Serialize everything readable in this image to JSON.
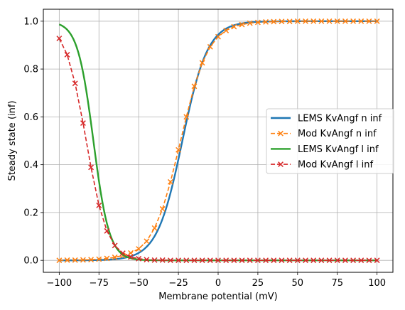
{
  "chart_data": {
    "type": "line",
    "xlabel": "Membrane potential (mV)",
    "ylabel": "Steady state (inf)",
    "xlim": [
      -110,
      110
    ],
    "ylim": [
      -0.05,
      1.05
    ],
    "xticks": [
      -100,
      -75,
      -50,
      -25,
      0,
      25,
      50,
      75,
      100
    ],
    "xtick_labels": [
      "−100",
      "−75",
      "−50",
      "−25",
      "0",
      "25",
      "50",
      "75",
      "100"
    ],
    "yticks": [
      0.0,
      0.2,
      0.4,
      0.6,
      0.8,
      1.0
    ],
    "ytick_labels": [
      "0.0",
      "0.2",
      "0.4",
      "0.6",
      "0.8",
      "1.0"
    ],
    "grid": true,
    "legend_position": "center-right",
    "x": [
      -100,
      -95,
      -90,
      -85,
      -80,
      -75,
      -70,
      -65,
      -60,
      -55,
      -50,
      -45,
      -40,
      -35,
      -30,
      -25,
      -20,
      -15,
      -10,
      -5,
      0,
      5,
      10,
      15,
      20,
      25,
      30,
      35,
      40,
      45,
      50,
      55,
      60,
      65,
      70,
      75,
      80,
      85,
      90,
      95,
      100
    ],
    "series": [
      {
        "name": "LEMS KvAngf n inf",
        "color": "#1f77b4",
        "style": "solid",
        "values": [
          0.0,
          0.001,
          0.001,
          0.002,
          0.003,
          0.005,
          0.008,
          0.013,
          0.02,
          0.031,
          0.048,
          0.08,
          0.135,
          0.215,
          0.328,
          0.462,
          0.6,
          0.728,
          0.826,
          0.893,
          0.935,
          0.961,
          0.977,
          0.986,
          0.992,
          0.995,
          0.997,
          0.998,
          0.999,
          0.999,
          1.0,
          1.0,
          1.0,
          1.0,
          1.0,
          1.0,
          1.0,
          1.0,
          1.0,
          1.0,
          1.0
        ]
      },
      {
        "name": "Mod KvAngf n inf",
        "color": "#ff7f0e",
        "style": "dashed-x",
        "values": [
          0.0,
          0.001,
          0.001,
          0.002,
          0.003,
          0.005,
          0.008,
          0.013,
          0.02,
          0.031,
          0.048,
          0.08,
          0.135,
          0.215,
          0.328,
          0.462,
          0.6,
          0.728,
          0.826,
          0.893,
          0.935,
          0.961,
          0.977,
          0.986,
          0.992,
          0.995,
          0.997,
          0.998,
          0.999,
          0.999,
          1.0,
          1.0,
          1.0,
          1.0,
          1.0,
          1.0,
          1.0,
          1.0,
          1.0,
          1.0,
          1.0
        ]
      },
      {
        "name": "LEMS KvAngf l inf",
        "color": "#2ca02c",
        "style": "solid",
        "values": [
          0.928,
          0.86,
          0.74,
          0.574,
          0.389,
          0.23,
          0.123,
          0.062,
          0.03,
          0.014,
          0.007,
          0.003,
          0.001,
          0.001,
          0.0,
          0.0,
          0.0,
          0.0,
          0.0,
          0.0,
          0.0,
          0.0,
          0.0,
          0.0,
          0.0,
          0.0,
          0.0,
          0.0,
          0.0,
          0.0,
          0.0,
          0.0,
          0.0,
          0.0,
          0.0,
          0.0,
          0.0,
          0.0,
          0.0,
          0.0,
          0.0
        ]
      },
      {
        "name": "Mod KvAngf l inf",
        "color": "#d62728",
        "style": "dashed-x",
        "values": [
          0.928,
          0.86,
          0.74,
          0.574,
          0.389,
          0.23,
          0.123,
          0.062,
          0.03,
          0.014,
          0.007,
          0.003,
          0.001,
          0.001,
          0.0,
          0.0,
          0.0,
          0.0,
          0.0,
          0.0,
          0.0,
          0.0,
          0.0,
          0.0,
          0.0,
          0.0,
          0.0,
          0.0,
          0.0,
          0.0,
          0.0,
          0.0,
          0.0,
          0.0,
          0.0,
          0.0,
          0.0,
          0.0,
          0.0,
          0.0,
          0.0
        ]
      }
    ]
  }
}
